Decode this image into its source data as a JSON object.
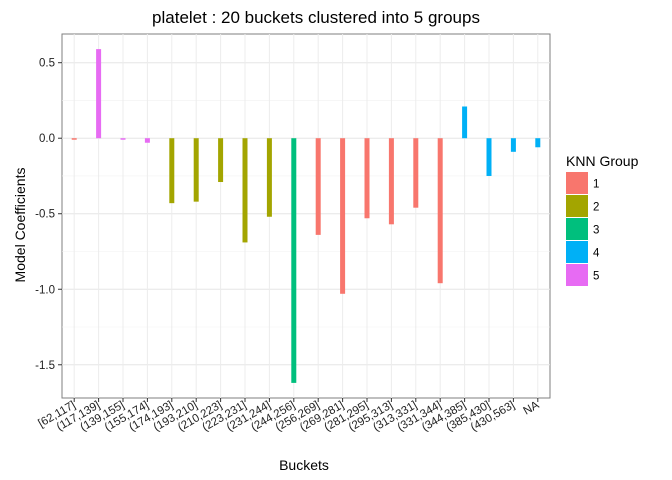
{
  "chart_data": {
    "type": "bar",
    "title": "platelet : 20 buckets clustered into 5 groups",
    "xlabel": "Buckets",
    "ylabel": "Model Coefficients",
    "ylim": [
      -1.72,
      0.69
    ],
    "yticks": [
      0.5,
      0.0,
      -0.5,
      -1.0,
      -1.5
    ],
    "ytick_labels": [
      "0.5",
      "0.0",
      "-0.5",
      "-1.0",
      "-1.5"
    ],
    "grid": true,
    "legend": {
      "title": "KNN Group",
      "placement": "right",
      "entries": [
        {
          "label": "1",
          "color": "#F8766D"
        },
        {
          "label": "2",
          "color": "#A3A500"
        },
        {
          "label": "3",
          "color": "#00BF7D"
        },
        {
          "label": "4",
          "color": "#00B0F6"
        },
        {
          "label": "5",
          "color": "#E76BF3"
        }
      ]
    },
    "categories": [
      "[62,117]",
      "(117,139]",
      "(139,155]",
      "(155,174]",
      "(174,193]",
      "(193,210]",
      "(210,223]",
      "(223,231]",
      "(231,244]",
      "(244,256]",
      "(256,269]",
      "(269,281]",
      "(281,295]",
      "(295,313]",
      "(313,331]",
      "(331,344]",
      "(344,385]",
      "(385,430]",
      "(430,563]",
      "NA"
    ],
    "values": [
      -0.01,
      0.59,
      -0.01,
      -0.03,
      -0.43,
      -0.42,
      -0.29,
      -0.69,
      -0.52,
      -1.62,
      -0.64,
      -1.03,
      -0.53,
      -0.57,
      -0.46,
      -0.96,
      0.21,
      -0.25,
      -0.09,
      -0.06
    ],
    "groups": [
      "1",
      "5",
      "5",
      "5",
      "2",
      "2",
      "2",
      "2",
      "2",
      "3",
      "1",
      "1",
      "1",
      "1",
      "1",
      "1",
      "4",
      "4",
      "4",
      "4"
    ]
  }
}
